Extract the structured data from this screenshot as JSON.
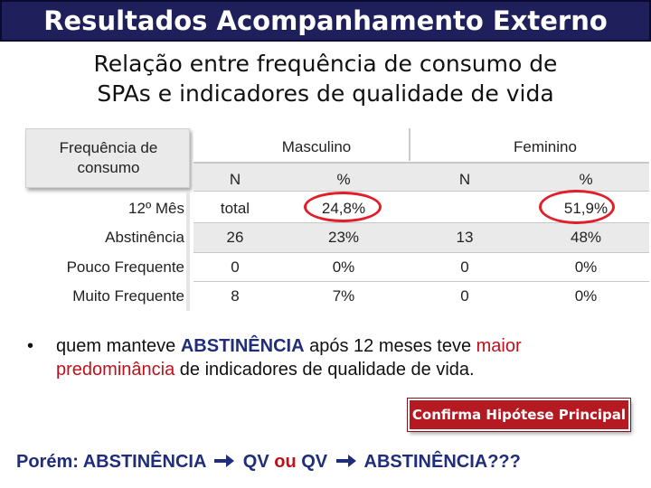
{
  "title": "Resultados Acompanhamento Externo",
  "subtitle": [
    "Relação entre frequência de consumo de",
    "SPAs e indicadores de qualidade de vida"
  ],
  "table": {
    "corner_label": [
      "Frequência de",
      "consumo"
    ],
    "groups": [
      "Masculino",
      "Feminino"
    ],
    "subheaders": [
      "N",
      "%",
      "N",
      "%"
    ],
    "rows": [
      {
        "label": "12º Mês",
        "cells": [
          "total",
          "24,8%",
          "",
          "51,9%"
        ]
      },
      {
        "label": "Abstinência",
        "cells": [
          "26",
          "23%",
          "13",
          "48%"
        ]
      },
      {
        "label": "Pouco Frequente",
        "cells": [
          "0",
          "0%",
          "0",
          "0%"
        ]
      },
      {
        "label": "Muito Frequente",
        "cells": [
          "8",
          "7%",
          "0",
          "0%"
        ]
      }
    ]
  },
  "bullet": {
    "symbol": "•",
    "parts": [
      "quem manteve ",
      "ABSTINÊNCIA",
      " após 12 meses teve ",
      "maior predominância",
      " de indicadores de qualidade de vida."
    ]
  },
  "callout": "Confirma Hipótese Principal",
  "question": {
    "part1": "Porém: ABSTINÊNCIA",
    "part2": "QV",
    "connector": "ou",
    "part3": "QV",
    "part4": "ABSTINÊNCIA???"
  },
  "colors": {
    "title_bg": "#1f1f5c",
    "highlight_red": "#e21e2b",
    "accent_blue": "#1f2d7a",
    "callout_bg": "#b51922"
  },
  "icons": [
    "right-arrow-icon"
  ]
}
